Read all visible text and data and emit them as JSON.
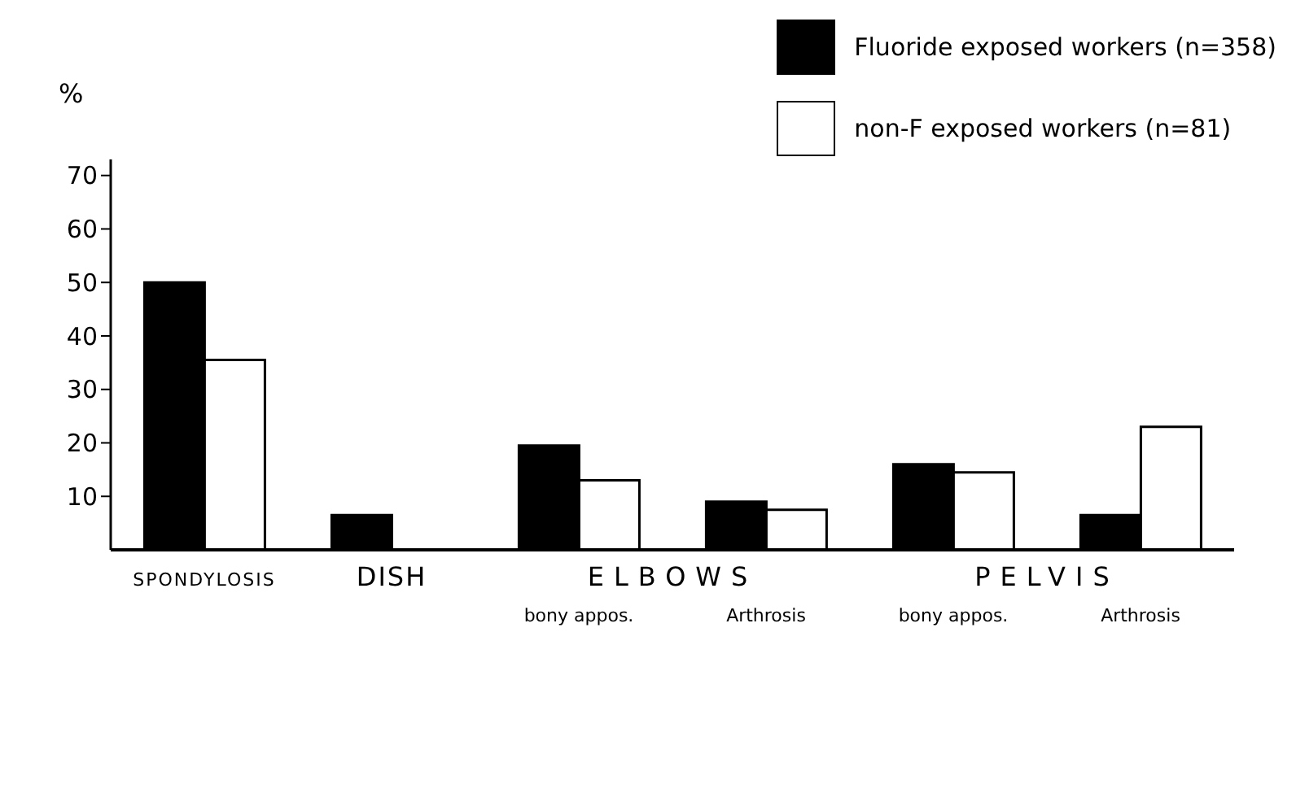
{
  "chart_data": {
    "type": "bar",
    "ylabel": "%",
    "categories": [
      "SPONDYLOSIS",
      "DISH",
      "bony appos.",
      "Arthrosis",
      "bony appos.",
      "Arthrosis"
    ],
    "series": [
      {
        "name": "Fluoride exposed workers (n=358)",
        "color": "#000000",
        "values": [
          50,
          6.5,
          19.5,
          9,
          16,
          6.5
        ]
      },
      {
        "name": "non-F exposed workers (n=81)",
        "color": "#ffffff",
        "values": [
          35.5,
          0,
          13,
          7.5,
          14.5,
          23
        ]
      }
    ],
    "annotations": [
      "ELBOWS",
      "PELVIS"
    ],
    "ylim": [
      0,
      73
    ],
    "yticks": [
      10,
      20,
      30,
      40,
      50,
      60,
      70
    ],
    "grid": false,
    "legend": "top right"
  }
}
